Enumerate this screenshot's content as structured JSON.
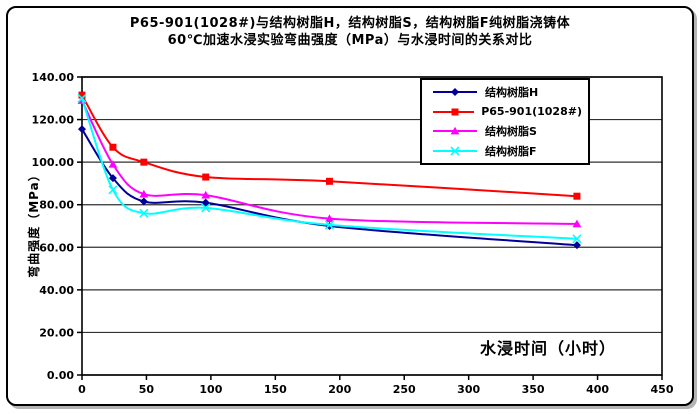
{
  "title": {
    "line1": "P65-901(1028#)与结构树脂H，结构树脂S，结构树脂F纯树脂浇铸体",
    "line2": "60℃加速水浸实验弯曲强度（MPa）与水浸时间的关系对比"
  },
  "chart_data": {
    "type": "line",
    "line_style": "smoothed",
    "grid": "horizontal",
    "legend_position": "top-right-inside",
    "xlabel": "水浸时间（小时）",
    "ylabel": "弯曲强度（MPa）",
    "xlim": [
      0,
      450
    ],
    "ylim": [
      0,
      140
    ],
    "x_ticks": [
      0,
      50,
      100,
      150,
      200,
      250,
      300,
      350,
      400,
      450
    ],
    "y_tick_values": [
      0,
      20,
      40,
      60,
      80,
      100,
      120,
      140
    ],
    "y_tick_labels": [
      "0.00",
      "20.00",
      "40.00",
      "60.00",
      "80.00",
      "100.00",
      "120.00",
      "140.00"
    ],
    "x": [
      0,
      24,
      48,
      96,
      192,
      384
    ],
    "series": [
      {
        "name": "结构树脂H",
        "color": "#000099",
        "marker": "diamond",
        "values": [
          115.5,
          92.5,
          81.5,
          81,
          70,
          61
        ]
      },
      {
        "name": "P65-901(1028#)",
        "color": "#FF0000",
        "marker": "square",
        "values": [
          131.5,
          107,
          100,
          93,
          91,
          84
        ]
      },
      {
        "name": "结构树脂S",
        "color": "#FF00FF",
        "marker": "triangle",
        "values": [
          129,
          99,
          85,
          84.5,
          73.5,
          71
        ]
      },
      {
        "name": "结构树脂F",
        "color": "#00FFFF",
        "marker": "x",
        "values": [
          130,
          87,
          76,
          78.5,
          70.5,
          64
        ]
      }
    ],
    "axis_color": "#000000",
    "gridline_color": "#303030"
  }
}
